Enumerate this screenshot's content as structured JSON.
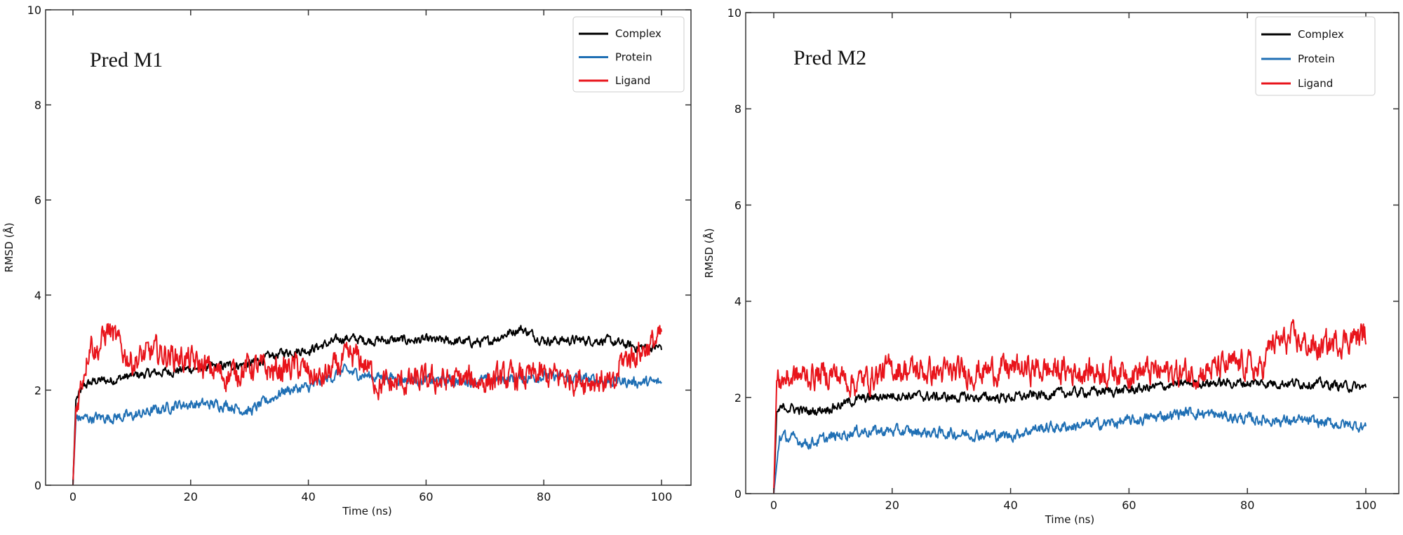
{
  "chart_data": [
    {
      "type": "line",
      "title": "Pred M1",
      "xlabel": "Time (ns)",
      "ylabel": "RMSD (Å)",
      "xlim": [
        -4,
        105
      ],
      "ylim": [
        0,
        10
      ],
      "xticks": [
        0,
        20,
        40,
        60,
        80,
        100
      ],
      "yticks": [
        0,
        2,
        4,
        6,
        8,
        10
      ],
      "legend_position": "top-right",
      "series": [
        {
          "name": "Complex",
          "color": "#000000",
          "points": [
            [
              0,
              0
            ],
            [
              0.5,
              1.8
            ],
            [
              2,
              2.1
            ],
            [
              4,
              2.2
            ],
            [
              6,
              2.2
            ],
            [
              10,
              2.3
            ],
            [
              20,
              2.45
            ],
            [
              30,
              2.55
            ],
            [
              36,
              2.8
            ],
            [
              40,
              2.85
            ],
            [
              44,
              3.0
            ],
            [
              46,
              3.1
            ],
            [
              50,
              3.05
            ],
            [
              60,
              3.05
            ],
            [
              70,
              3.0
            ],
            [
              76,
              3.3
            ],
            [
              80,
              3.05
            ],
            [
              90,
              3.05
            ],
            [
              96,
              2.9
            ],
            [
              100,
              2.9
            ]
          ]
        },
        {
          "name": "Protein",
          "color": "#1f6fb4",
          "points": [
            [
              0,
              0
            ],
            [
              0.5,
              1.4
            ],
            [
              10,
              1.45
            ],
            [
              18,
              1.7
            ],
            [
              26,
              1.7
            ],
            [
              30,
              1.55
            ],
            [
              36,
              2.0
            ],
            [
              40,
              2.05
            ],
            [
              46,
              2.4
            ],
            [
              50,
              2.3
            ],
            [
              60,
              2.2
            ],
            [
              70,
              2.2
            ],
            [
              80,
              2.3
            ],
            [
              90,
              2.2
            ],
            [
              100,
              2.15
            ]
          ]
        },
        {
          "name": "Ligand",
          "color": "#e8141b",
          "points": [
            [
              0,
              0
            ],
            [
              0.5,
              1.6
            ],
            [
              3,
              3.1
            ],
            [
              4,
              2.8
            ],
            [
              6,
              3.3
            ],
            [
              8,
              2.9
            ],
            [
              10,
              2.6
            ],
            [
              14,
              2.8
            ],
            [
              18,
              2.7
            ],
            [
              22,
              2.5
            ],
            [
              26,
              2.3
            ],
            [
              30,
              2.5
            ],
            [
              34,
              2.4
            ],
            [
              38,
              2.5
            ],
            [
              42,
              2.2
            ],
            [
              46,
              2.6
            ],
            [
              48,
              2.7
            ],
            [
              50,
              2.5
            ],
            [
              52,
              2.1
            ],
            [
              60,
              2.2
            ],
            [
              70,
              2.2
            ],
            [
              80,
              2.3
            ],
            [
              90,
              2.2
            ],
            [
              92,
              2.0
            ],
            [
              93,
              2.6
            ],
            [
              96,
              2.8
            ],
            [
              100,
              3.1
            ]
          ]
        }
      ]
    },
    {
      "type": "line",
      "title": "Pred M2",
      "xlabel": "Time (ns)",
      "ylabel": "RMSD (Å)",
      "xlim": [
        -4,
        105
      ],
      "ylim": [
        0,
        10
      ],
      "xticks": [
        0,
        20,
        40,
        60,
        80,
        100
      ],
      "yticks": [
        0,
        2,
        4,
        6,
        8,
        10
      ],
      "legend_position": "top-right",
      "series": [
        {
          "name": "Complex",
          "color": "#000000",
          "points": [
            [
              0,
              0
            ],
            [
              0.5,
              1.7
            ],
            [
              2,
              1.8
            ],
            [
              6,
              1.7
            ],
            [
              10,
              1.8
            ],
            [
              14,
              1.95
            ],
            [
              20,
              2.05
            ],
            [
              30,
              2.0
            ],
            [
              40,
              2.0
            ],
            [
              50,
              2.1
            ],
            [
              60,
              2.15
            ],
            [
              70,
              2.3
            ],
            [
              80,
              2.3
            ],
            [
              90,
              2.3
            ],
            [
              100,
              2.2
            ]
          ]
        },
        {
          "name": "Protein",
          "color": "#1f6fb4",
          "points": [
            [
              0,
              0
            ],
            [
              1,
              1.2
            ],
            [
              6,
              1.05
            ],
            [
              14,
              1.3
            ],
            [
              20,
              1.3
            ],
            [
              30,
              1.25
            ],
            [
              40,
              1.2
            ],
            [
              44,
              1.35
            ],
            [
              50,
              1.4
            ],
            [
              60,
              1.5
            ],
            [
              70,
              1.7
            ],
            [
              80,
              1.55
            ],
            [
              90,
              1.5
            ],
            [
              100,
              1.4
            ]
          ]
        },
        {
          "name": "Ligand",
          "color": "#e8141b",
          "points": [
            [
              0,
              0
            ],
            [
              0.5,
              2.35
            ],
            [
              2,
              2.4
            ],
            [
              6,
              2.45
            ],
            [
              10,
              2.5
            ],
            [
              14,
              2.3
            ],
            [
              20,
              2.6
            ],
            [
              30,
              2.5
            ],
            [
              40,
              2.6
            ],
            [
              50,
              2.55
            ],
            [
              60,
              2.55
            ],
            [
              70,
              2.5
            ],
            [
              80,
              2.7
            ],
            [
              82,
              2.5
            ],
            [
              84,
              3.1
            ],
            [
              88,
              3.2
            ],
            [
              92,
              3.0
            ],
            [
              96,
              3.2
            ],
            [
              100,
              3.3
            ]
          ]
        }
      ]
    }
  ]
}
